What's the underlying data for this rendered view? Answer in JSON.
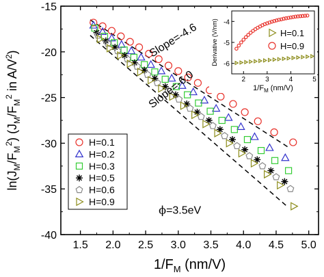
{
  "chart_data": {
    "type": "scatter",
    "title": "",
    "xlabel": {
      "prefix": "1/F",
      "sub": "M",
      "suffix": " (nm/V)"
    },
    "ylabel": {
      "t1": "ln(J",
      "s1": "M",
      "t2": "/F",
      "s2": "M",
      "p1": "2",
      "t3": ")  (J",
      "s3": "M",
      "t4": "/F",
      "s4": "M",
      "p2": "2",
      "t5": " in A/V",
      "p3": "2",
      "t6": ")"
    },
    "xlim": [
      1.2,
      5.15
    ],
    "ylim": [
      -40,
      -15
    ],
    "x_ticks": [
      1.5,
      2.0,
      2.5,
      3.0,
      3.5,
      4.0,
      4.5,
      5.0
    ],
    "x_tick_labels": [
      "1.5",
      "2.0",
      "2.5",
      "3.0",
      "3.5",
      "4.0",
      "4.5",
      "5.0"
    ],
    "y_ticks": [
      -40,
      -35,
      -30,
      -25,
      -20,
      -15
    ],
    "y_tick_labels": [
      "-40",
      "-35",
      "-30",
      "-25",
      "-20",
      "-15"
    ],
    "legend_position": "lower-left",
    "series": [
      {
        "name": "H=0.1",
        "marker": "circle",
        "color": "#e8312a",
        "x": [
          1.7,
          1.84,
          1.98,
          2.12,
          2.26,
          2.4,
          2.55,
          2.7,
          2.85,
          3.0,
          3.15,
          3.3,
          3.48,
          3.65,
          3.84,
          4.02,
          4.22,
          4.47,
          4.76
        ],
        "y": [
          -16.8,
          -17.2,
          -17.7,
          -18.3,
          -18.9,
          -19.5,
          -20.2,
          -20.8,
          -21.5,
          -22.1,
          -22.8,
          -23.4,
          -24.2,
          -24.9,
          -25.7,
          -26.6,
          -27.6,
          -28.8,
          -29.9
        ]
      },
      {
        "name": "H=0.2",
        "marker": "triangle-up",
        "color": "#3333cc",
        "x": [
          1.7,
          1.84,
          1.98,
          2.13,
          2.28,
          2.43,
          2.58,
          2.74,
          2.9,
          3.06,
          3.23,
          3.4,
          3.58,
          3.77,
          3.96,
          4.17,
          4.4,
          4.64
        ],
        "y": [
          -17.1,
          -17.8,
          -18.5,
          -19.2,
          -19.9,
          -20.6,
          -21.4,
          -22.1,
          -22.9,
          -23.7,
          -24.4,
          -25.3,
          -26.2,
          -27.2,
          -28.2,
          -29.3,
          -30.5,
          -31.6
        ]
      },
      {
        "name": "H=0.3",
        "marker": "square",
        "color": "#33cc33",
        "x": [
          1.72,
          1.87,
          2.02,
          2.17,
          2.32,
          2.48,
          2.64,
          2.8,
          2.97,
          3.14,
          3.31,
          3.49,
          3.67,
          3.86,
          4.06,
          4.27,
          4.48,
          4.69
        ],
        "y": [
          -17.4,
          -18.3,
          -19.0,
          -19.8,
          -20.6,
          -21.4,
          -22.2,
          -23.0,
          -23.8,
          -24.7,
          -25.6,
          -26.5,
          -27.5,
          -28.5,
          -29.6,
          -30.8,
          -31.9,
          -33.0
        ]
      },
      {
        "name": "H=0.5",
        "marker": "asterisk",
        "color": "#000000",
        "x": [
          1.75,
          1.89,
          2.03,
          2.18,
          2.33,
          2.48,
          2.64,
          2.8,
          2.96,
          3.13,
          3.29,
          3.47,
          3.64,
          3.83,
          4.02,
          4.21,
          4.42,
          4.63
        ],
        "y": [
          -17.9,
          -18.8,
          -19.5,
          -20.4,
          -21.2,
          -22.0,
          -22.9,
          -23.8,
          -24.7,
          -25.7,
          -26.6,
          -27.5,
          -28.5,
          -29.6,
          -30.7,
          -31.8,
          -33.0,
          -34.2
        ]
      },
      {
        "name": "H=0.6",
        "marker": "pentagon",
        "color": "#888888",
        "x": [
          1.77,
          1.92,
          2.07,
          2.22,
          2.37,
          2.53,
          2.68,
          2.85,
          3.01,
          3.18,
          3.35,
          3.53,
          3.71,
          3.9,
          4.09,
          4.29,
          4.5,
          4.72
        ],
        "y": [
          -18.2,
          -19.1,
          -19.9,
          -20.8,
          -21.6,
          -22.5,
          -23.4,
          -24.3,
          -25.2,
          -26.2,
          -27.1,
          -28.1,
          -29.2,
          -30.3,
          -31.4,
          -32.5,
          -33.7,
          -35.0
        ]
      },
      {
        "name": "H=0.9",
        "marker": "triangle-right",
        "color": "#8c8c1a",
        "x": [
          1.8,
          1.95,
          2.11,
          2.26,
          2.42,
          2.58,
          2.74,
          2.91,
          3.08,
          3.25,
          3.42,
          3.6,
          3.78,
          3.97,
          4.16,
          4.36,
          4.56,
          4.77
        ],
        "y": [
          -18.6,
          -19.6,
          -20.4,
          -21.3,
          -22.2,
          -23.1,
          -24.0,
          -24.9,
          -25.9,
          -26.9,
          -27.9,
          -28.9,
          -30.0,
          -31.1,
          -32.2,
          -33.4,
          -34.6,
          -36.9
        ]
      }
    ],
    "fit_lines": [
      {
        "label": "Slope=-4.6",
        "x": [
          1.65,
          4.7
        ],
        "y": [
          -16.5,
          -30.5
        ]
      },
      {
        "label": "Slope=-6.0",
        "x": [
          1.65,
          4.65
        ],
        "y": [
          -18.2,
          -36.8
        ]
      }
    ],
    "annotations": [
      {
        "text": "Slope=-4.6",
        "x": 2.6,
        "y": -20.6,
        "rotate": -32
      },
      {
        "text": "Slope=-6.0",
        "x": 2.6,
        "y": -26.2,
        "rotate": -38
      }
    ],
    "phi_label": {
      "symbol": "ϕ",
      "value": "=3.5eV",
      "x": 2.7,
      "y": -37.7
    },
    "inset": {
      "type": "scatter",
      "xlabel": {
        "prefix": "1/F",
        "sub": "M",
        "suffix": " (nm/V)"
      },
      "ylabel": "Derivative (V/nm)",
      "xlim": [
        1.5,
        5.0
      ],
      "ylim": [
        -6.5,
        -3.5
      ],
      "x_ticks": [
        2,
        3,
        4,
        5
      ],
      "x_tick_labels": [
        "2",
        "3",
        "4",
        "5"
      ],
      "y_ticks": [
        -6,
        -5,
        -4
      ],
      "y_tick_labels": [
        "-6",
        "-5",
        "-4"
      ],
      "legend_position": "center-right",
      "series": [
        {
          "name": "H=0.1",
          "marker": "triangle-right",
          "color": "#8c8c1a",
          "x": [
            1.7,
            1.9,
            2.1,
            2.3,
            2.5,
            2.7,
            2.9,
            3.1,
            3.3,
            3.5,
            3.7,
            3.9,
            4.1,
            4.3,
            4.5,
            4.7,
            4.9
          ],
          "y": [
            -5.98,
            -5.96,
            -5.94,
            -5.92,
            -5.9,
            -5.88,
            -5.86,
            -5.84,
            -5.82,
            -5.8,
            -5.78,
            -5.76,
            -5.74,
            -5.72,
            -5.7,
            -5.68,
            -5.66
          ]
        },
        {
          "name": "H=0.9",
          "marker": "circle",
          "color": "#e8312a",
          "x": [
            1.7,
            1.8,
            1.9,
            2.0,
            2.1,
            2.2,
            2.3,
            2.4,
            2.5,
            2.6,
            2.7,
            2.8,
            2.9,
            3.0,
            3.1,
            3.2,
            3.3,
            3.4,
            3.5,
            3.6,
            3.7,
            3.8,
            3.9,
            4.0,
            4.1,
            4.2,
            4.3,
            4.4,
            4.5,
            4.6,
            4.7
          ],
          "y": [
            -5.3,
            -5.15,
            -5.0,
            -4.87,
            -4.75,
            -4.64,
            -4.54,
            -4.45,
            -4.37,
            -4.3,
            -4.24,
            -4.18,
            -4.13,
            -4.09,
            -4.05,
            -4.01,
            -3.98,
            -3.95,
            -3.92,
            -3.9,
            -3.87,
            -3.85,
            -3.83,
            -3.81,
            -3.79,
            -3.77,
            -3.76,
            -3.75,
            -3.74,
            -3.73,
            -3.72
          ]
        }
      ]
    }
  }
}
